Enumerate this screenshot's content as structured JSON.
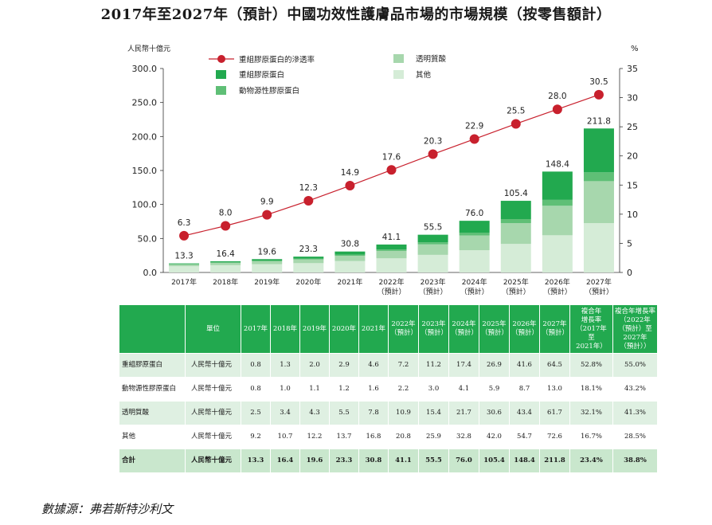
{
  "title": "2017年至2027年（預計）中國功效性護膚品市場的市場規模（按零售額計）",
  "source": "數據源：弗若斯特沙利文",
  "colors": {
    "recombinant": "#22a94f",
    "animal": "#5fbf76",
    "hyaluronic": "#a7d7ad",
    "other": "#d5ecd7",
    "line": "#c8202d",
    "header": "#22a94f"
  },
  "chart_data": {
    "type": "bar",
    "stacked": true,
    "y_left_label": "人民幣十億元",
    "y_right_label": "%",
    "y_left_range": [
      0,
      300
    ],
    "y_left_ticks": [
      "0.0",
      "50.0",
      "100.0",
      "150.0",
      "200.0",
      "250.0",
      "300.0"
    ],
    "y_right_range": [
      0,
      35
    ],
    "y_right_ticks": [
      "0",
      "5",
      "10",
      "15",
      "20",
      "25",
      "30",
      "35"
    ],
    "categories": [
      "2017年",
      "2018年",
      "2019年",
      "2020年",
      "2021年",
      "2022年",
      "2023年",
      "2024年",
      "2025年",
      "2026年",
      "2027年"
    ],
    "category_notes": [
      "",
      "",
      "",
      "",
      "",
      "（預計）",
      "（預計）",
      "（預計）",
      "（預計）",
      "（預計）",
      "（預計）"
    ],
    "series": [
      {
        "name": "其他",
        "values": [
          9.2,
          10.7,
          12.2,
          13.7,
          16.8,
          20.8,
          25.9,
          32.8,
          42.0,
          54.7,
          72.6
        ]
      },
      {
        "name": "透明質酸",
        "values": [
          2.5,
          3.4,
          4.3,
          5.5,
          7.8,
          10.9,
          15.4,
          21.7,
          30.6,
          43.4,
          61.7
        ]
      },
      {
        "name": "動物源性膠原蛋白",
        "values": [
          0.8,
          1.0,
          1.1,
          1.2,
          1.6,
          2.2,
          3.0,
          4.1,
          5.9,
          8.7,
          13.0
        ]
      },
      {
        "name": "重組膠原蛋白",
        "values": [
          0.8,
          1.3,
          2.0,
          2.9,
          4.6,
          7.2,
          11.2,
          17.4,
          26.9,
          41.6,
          64.5
        ]
      }
    ],
    "totals": [
      "13.3",
      "16.4",
      "19.6",
      "23.3",
      "30.8",
      "41.1",
      "55.5",
      "76.0",
      "105.4",
      "148.4",
      "211.8"
    ],
    "total_values": [
      13.3,
      16.4,
      19.6,
      23.3,
      30.8,
      41.1,
      55.5,
      76.0,
      105.4,
      148.4,
      211.8
    ],
    "line": {
      "name": "重組膠原蛋白的滲透率",
      "axis": "right",
      "values": [
        6.3,
        8.0,
        9.9,
        12.3,
        14.9,
        17.6,
        20.3,
        22.9,
        25.5,
        28.0,
        30.5
      ],
      "labels": [
        "6.3",
        "8.0",
        "9.9",
        "12.3",
        "14.9",
        "17.6",
        "20.3",
        "22.9",
        "25.5",
        "28.0",
        "30.5"
      ]
    },
    "legend": {
      "line": "重組膠原蛋白的滲透率",
      "recombinant": "重組膠原蛋白",
      "animal": "動物源性膠原蛋白",
      "hyaluronic": "透明質酸",
      "other": "其他"
    }
  },
  "table": {
    "header": {
      "col0": "",
      "unit": "單位",
      "years": [
        {
          "l1": "2017年",
          "l2": ""
        },
        {
          "l1": "2018年",
          "l2": ""
        },
        {
          "l1": "2019年",
          "l2": ""
        },
        {
          "l1": "2020年",
          "l2": ""
        },
        {
          "l1": "2021年",
          "l2": ""
        },
        {
          "l1": "2022年",
          "l2": "（預計）"
        },
        {
          "l1": "2023年",
          "l2": "（預計）"
        },
        {
          "l1": "2024年",
          "l2": "（預計）"
        },
        {
          "l1": "2025年",
          "l2": "（預計）"
        },
        {
          "l1": "2026年",
          "l2": "（預計）"
        },
        {
          "l1": "2027年",
          "l2": "（預計）"
        }
      ],
      "cagr1": [
        "複合年",
        "增長率",
        "（2017年",
        "至",
        "2021年）"
      ],
      "cagr2": [
        "複合年增長率",
        "（2022年",
        "（預計）至",
        "2027年",
        "（預計））"
      ]
    },
    "rows": [
      {
        "label": "重組膠原蛋白",
        "unit": "人民幣十億元",
        "values": [
          "0.8",
          "1.3",
          "2.0",
          "2.9",
          "4.6",
          "7.2",
          "11.2",
          "17.4",
          "26.9",
          "41.6",
          "64.5"
        ],
        "cagr1": "52.8%",
        "cagr2": "55.0%"
      },
      {
        "label": "動物源性膠原蛋白",
        "unit": "人民幣十億元",
        "values": [
          "0.8",
          "1.0",
          "1.1",
          "1.2",
          "1.6",
          "2.2",
          "3.0",
          "4.1",
          "5.9",
          "8.7",
          "13.0"
        ],
        "cagr1": "18.1%",
        "cagr2": "43.2%"
      },
      {
        "label": "透明質酸",
        "unit": "人民幣十億元",
        "values": [
          "2.5",
          "3.4",
          "4.3",
          "5.5",
          "7.8",
          "10.9",
          "15.4",
          "21.7",
          "30.6",
          "43.4",
          "61.7"
        ],
        "cagr1": "32.1%",
        "cagr2": "41.3%"
      },
      {
        "label": "其他",
        "unit": "人民幣十億元",
        "values": [
          "9.2",
          "10.7",
          "12.2",
          "13.7",
          "16.8",
          "20.8",
          "25.9",
          "32.8",
          "42.0",
          "54.7",
          "72.6"
        ],
        "cagr1": "16.7%",
        "cagr2": "28.5%"
      },
      {
        "label": "合計",
        "unit": "人民幣十億元",
        "values": [
          "13.3",
          "16.4",
          "19.6",
          "23.3",
          "30.8",
          "41.1",
          "55.5",
          "76.0",
          "105.4",
          "148.4",
          "211.8"
        ],
        "cagr1": "23.4%",
        "cagr2": "38.8%"
      }
    ]
  }
}
